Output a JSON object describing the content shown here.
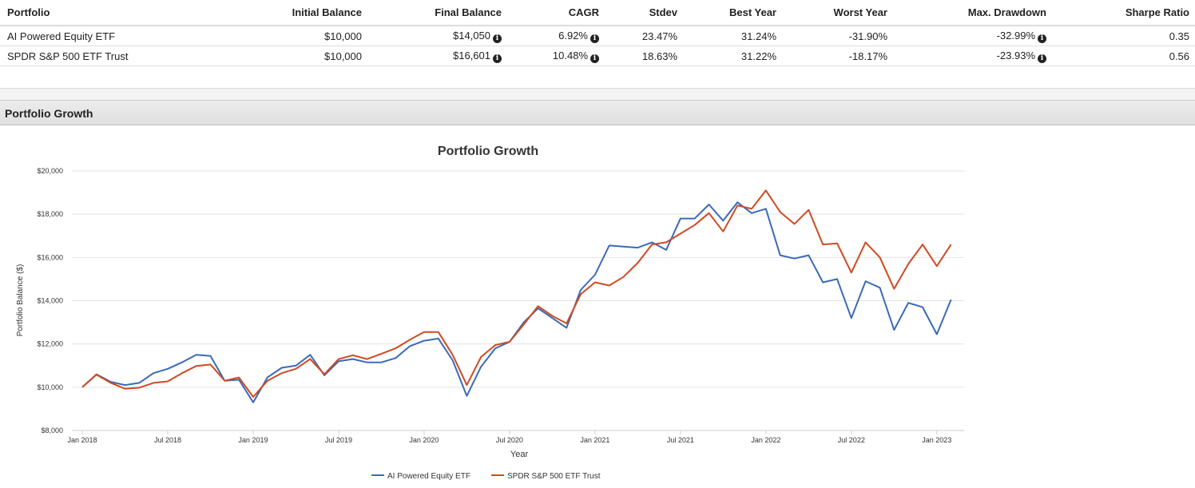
{
  "table": {
    "headers": [
      "Portfolio",
      "Initial Balance",
      "Final Balance",
      "CAGR",
      "Stdev",
      "Best Year",
      "Worst Year",
      "Max. Drawdown",
      "Sharpe Ratio"
    ],
    "rows": [
      [
        "AI Powered Equity ETF",
        "$10,000",
        "$14,050",
        "6.92%",
        "23.47%",
        "31.24%",
        "-31.90%",
        "-32.99%",
        "0.35"
      ],
      [
        "SPDR S&P 500 ETF Trust",
        "$10,000",
        "$16,601",
        "10.48%",
        "18.63%",
        "31.22%",
        "-18.17%",
        "-23.93%",
        "0.56"
      ]
    ]
  },
  "section_title": "Portfolio Growth",
  "chart_data": {
    "type": "line",
    "title": "Portfolio Growth",
    "xlabel": "Year",
    "ylabel": "Portfolio Balance ($)",
    "ylim": [
      8000,
      20000
    ],
    "yticks": [
      "$8,000",
      "$10,000",
      "$12,000",
      "$14,000",
      "$16,000",
      "$18,000",
      "$20,000"
    ],
    "xticks": [
      "Jan 2018",
      "Jul 2018",
      "Jan 2019",
      "Jul 2019",
      "Jan 2020",
      "Jul 2020",
      "Jan 2021",
      "Jul 2021",
      "Jan 2022",
      "Jul 2022",
      "Jan 2023"
    ],
    "x_start": "Jan 2018",
    "x_frequency": "monthly",
    "legend_position": "bottom",
    "series": [
      {
        "name": "AI Powered Equity ETF",
        "color": "#3a6ab8",
        "values": [
          10000,
          10600,
          10250,
          10100,
          10200,
          10650,
          10850,
          11150,
          11500,
          11450,
          10300,
          10350,
          9300,
          10450,
          10900,
          11000,
          11500,
          10550,
          11200,
          11300,
          11150,
          11150,
          11350,
          11900,
          12150,
          12250,
          11250,
          9600,
          10950,
          11800,
          12100,
          13000,
          13650,
          13200,
          12750,
          14500,
          15200,
          16550,
          16500,
          16450,
          16700,
          16350,
          17800,
          17800,
          18450,
          17700,
          18550,
          18050,
          18250,
          16100,
          15950,
          16100,
          14850,
          15000,
          13200,
          14900,
          14600,
          12650,
          13900,
          13700,
          12450,
          14050
        ]
      },
      {
        "name": "SPDR S&P 500 ETF Trust",
        "color": "#d04a22",
        "values": [
          10000,
          10580,
          10200,
          9930,
          9980,
          10200,
          10270,
          10650,
          10980,
          11050,
          10300,
          10450,
          9550,
          10300,
          10650,
          10850,
          11300,
          10600,
          11300,
          11480,
          11300,
          11550,
          11800,
          12200,
          12550,
          12550,
          11500,
          10100,
          11400,
          11950,
          12100,
          12900,
          13750,
          13300,
          12950,
          14300,
          14850,
          14700,
          15100,
          15750,
          16600,
          16700,
          17100,
          17500,
          18050,
          17200,
          18400,
          18250,
          19100,
          18100,
          17550,
          18200,
          16600,
          16650,
          15300,
          16700,
          16000,
          14550,
          15700,
          16600,
          15600,
          16601
        ]
      }
    ]
  }
}
